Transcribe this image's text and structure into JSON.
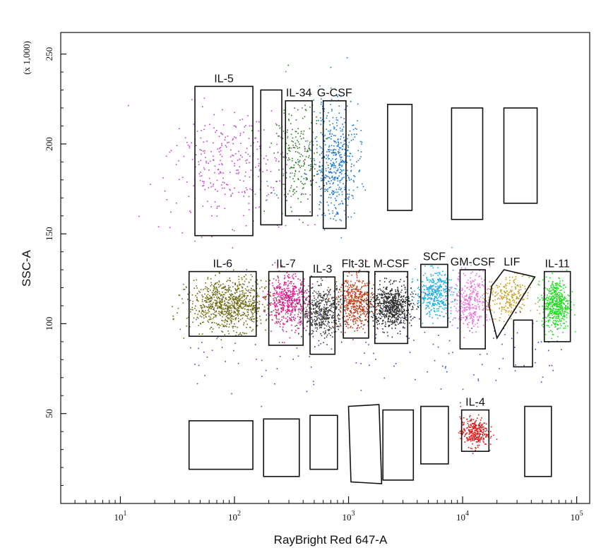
{
  "chart_data": {
    "type": "scatter",
    "xlabel": "RayBright Red 647-A",
    "ylabel": "SSC-A",
    "y_multiplier_label": "(x 1,000)",
    "x_scale": "log",
    "xlim": [
      3,
      130000
    ],
    "ylim": [
      0,
      262
    ],
    "x_ticks": [
      {
        "value": 10,
        "label": "10",
        "exp": "1"
      },
      {
        "value": 100,
        "label": "10",
        "exp": "2"
      },
      {
        "value": 1000,
        "label": "10",
        "exp": "3"
      },
      {
        "value": 10000,
        "label": "10",
        "exp": "4"
      },
      {
        "value": 100000,
        "label": "10",
        "exp": "5"
      }
    ],
    "y_ticks": [
      {
        "value": 50,
        "label": "50"
      },
      {
        "value": 100,
        "label": "100"
      },
      {
        "value": 150,
        "label": "150"
      },
      {
        "value": 200,
        "label": "200"
      },
      {
        "value": 250,
        "label": "250"
      }
    ],
    "grid": false,
    "legend": "none",
    "gates": [
      {
        "label": "IL-5",
        "x": [
          45,
          145
        ],
        "y": [
          149,
          232
        ],
        "color": "#c43dd6",
        "xc": 95,
        "yc": 188,
        "sx": 0.28,
        "sy": 16,
        "n": 320
      },
      {
        "label": "",
        "x": [
          170,
          260
        ],
        "y": [
          155,
          230
        ],
        "color": "#36a8e0",
        "xc": 210,
        "yc": 190,
        "sx": 0.12,
        "sy": 14,
        "n": 6
      },
      {
        "label": "IL-34",
        "x": [
          280,
          480
        ],
        "y": [
          160,
          224
        ],
        "color": "#2a7d1e",
        "xc": 370,
        "yc": 192,
        "sx": 0.12,
        "sy": 15,
        "n": 230
      },
      {
        "label": "G-CSF",
        "x": [
          600,
          950
        ],
        "y": [
          153,
          224
        ],
        "color": "#1a78d4",
        "xc": 760,
        "yc": 190,
        "sx": 0.1,
        "sy": 16,
        "n": 480
      },
      {
        "label": "",
        "x": [
          2200,
          3600
        ],
        "y": [
          163,
          222
        ],
        "color": "#000000",
        "xc": 2800,
        "yc": 190,
        "sx": 0.1,
        "sy": 10,
        "n": 0
      },
      {
        "label": "",
        "x": [
          8000,
          15000
        ],
        "y": [
          158,
          220
        ],
        "color": "#000000",
        "xc": 11000,
        "yc": 190,
        "sx": 0.1,
        "sy": 10,
        "n": 0
      },
      {
        "label": "",
        "x": [
          23000,
          45000
        ],
        "y": [
          167,
          220
        ],
        "color": "#000000",
        "xc": 30000,
        "yc": 190,
        "sx": 0.1,
        "sy": 10,
        "n": 0
      },
      {
        "label": "IL-6",
        "x": [
          40,
          155
        ],
        "y": [
          93,
          129
        ],
        "color": "#6e6a12",
        "xc": 90,
        "yc": 111,
        "sx": 0.18,
        "sy": 7,
        "n": 900
      },
      {
        "label": "IL-7",
        "x": [
          200,
          400
        ],
        "y": [
          88,
          129
        ],
        "color": "#e0188c",
        "xc": 290,
        "yc": 113,
        "sx": 0.09,
        "sy": 7,
        "n": 500
      },
      {
        "label": "IL-3",
        "x": [
          460,
          760
        ],
        "y": [
          83,
          126
        ],
        "color": "#3b3b3b",
        "xc": 590,
        "yc": 107,
        "sx": 0.09,
        "sy": 7,
        "n": 450
      },
      {
        "label": "Flt-3L",
        "x": [
          900,
          1500
        ],
        "y": [
          92,
          129
        ],
        "color": "#c8380e",
        "xc": 1150,
        "yc": 112,
        "sx": 0.08,
        "sy": 7,
        "n": 450
      },
      {
        "label": "M-CSF",
        "x": [
          1700,
          3300
        ],
        "y": [
          89,
          129
        ],
        "color": "#2b2b2b",
        "xc": 2350,
        "yc": 110,
        "sx": 0.09,
        "sy": 6,
        "n": 650
      },
      {
        "label": "SCF",
        "x": [
          4300,
          7400
        ],
        "y": [
          98,
          133
        ],
        "color": "#1aaee6",
        "xc": 5600,
        "yc": 117,
        "sx": 0.08,
        "sy": 6,
        "n": 380
      },
      {
        "label": "GM-CSF",
        "x": [
          9500,
          15800
        ],
        "y": [
          86,
          130
        ],
        "color": "#ee6ae0",
        "xc": 12000,
        "yc": 113,
        "sx": 0.08,
        "sy": 8,
        "n": 320
      },
      {
        "label": "LIF",
        "shape": "polygon",
        "points": [
          [
            18000,
            121
          ],
          [
            23000,
            130
          ],
          [
            43000,
            126
          ],
          [
            20000,
            92
          ],
          [
            17000,
            110
          ]
        ],
        "color": "#c8a024",
        "xc": 25000,
        "yc": 114,
        "sx": 0.09,
        "sy": 6,
        "n": 250
      },
      {
        "label": "",
        "x": [
          28000,
          41000
        ],
        "y": [
          76,
          102
        ],
        "color": "#000000",
        "xc": 33000,
        "yc": 90,
        "sx": 0.05,
        "sy": 5,
        "n": 0
      },
      {
        "label": "IL-11",
        "x": [
          52000,
          88000
        ],
        "y": [
          90,
          129
        ],
        "color": "#18e018",
        "xc": 65000,
        "yc": 111,
        "sx": 0.06,
        "sy": 7,
        "n": 500
      },
      {
        "label": "",
        "x": [
          40,
          145
        ],
        "y": [
          19,
          46
        ],
        "color": "#000000",
        "xc": 80,
        "yc": 30,
        "sx": 0.1,
        "sy": 5,
        "n": 0
      },
      {
        "label": "",
        "x": [
          180,
          370
        ],
        "y": [
          15,
          47
        ],
        "color": "#000000",
        "xc": 250,
        "yc": 30,
        "sx": 0.1,
        "sy": 5,
        "n": 0
      },
      {
        "label": "",
        "x": [
          460,
          800
        ],
        "y": [
          19,
          49
        ],
        "color": "#000000",
        "xc": 600,
        "yc": 30,
        "sx": 0.1,
        "sy": 5,
        "n": 0
      },
      {
        "label": "",
        "shape": "polygon",
        "points": [
          [
            1000,
            54
          ],
          [
            1850,
            55
          ],
          [
            1950,
            11
          ],
          [
            1050,
            12
          ]
        ],
        "color": "#000000",
        "xc": 1400,
        "yc": 30,
        "sx": 0.1,
        "sy": 5,
        "n": 0
      },
      {
        "label": "",
        "x": [
          2000,
          3700
        ],
        "y": [
          13,
          52
        ],
        "color": "#000000",
        "xc": 2800,
        "yc": 30,
        "sx": 0.1,
        "sy": 5,
        "n": 0
      },
      {
        "label": "",
        "x": [
          4300,
          7500
        ],
        "y": [
          22,
          54
        ],
        "color": "#000000",
        "xc": 5600,
        "yc": 35,
        "sx": 0.1,
        "sy": 5,
        "n": 0
      },
      {
        "label": "IL-4",
        "x": [
          9800,
          17000
        ],
        "y": [
          29,
          52
        ],
        "color": "#e01818",
        "xc": 12500,
        "yc": 40,
        "sx": 0.06,
        "sy": 4,
        "n": 300
      },
      {
        "label": "",
        "x": [
          35000,
          60000
        ],
        "y": [
          15,
          54
        ],
        "color": "#000000",
        "xc": 45000,
        "yc": 33,
        "sx": 0.1,
        "sy": 5,
        "n": 0
      }
    ]
  }
}
